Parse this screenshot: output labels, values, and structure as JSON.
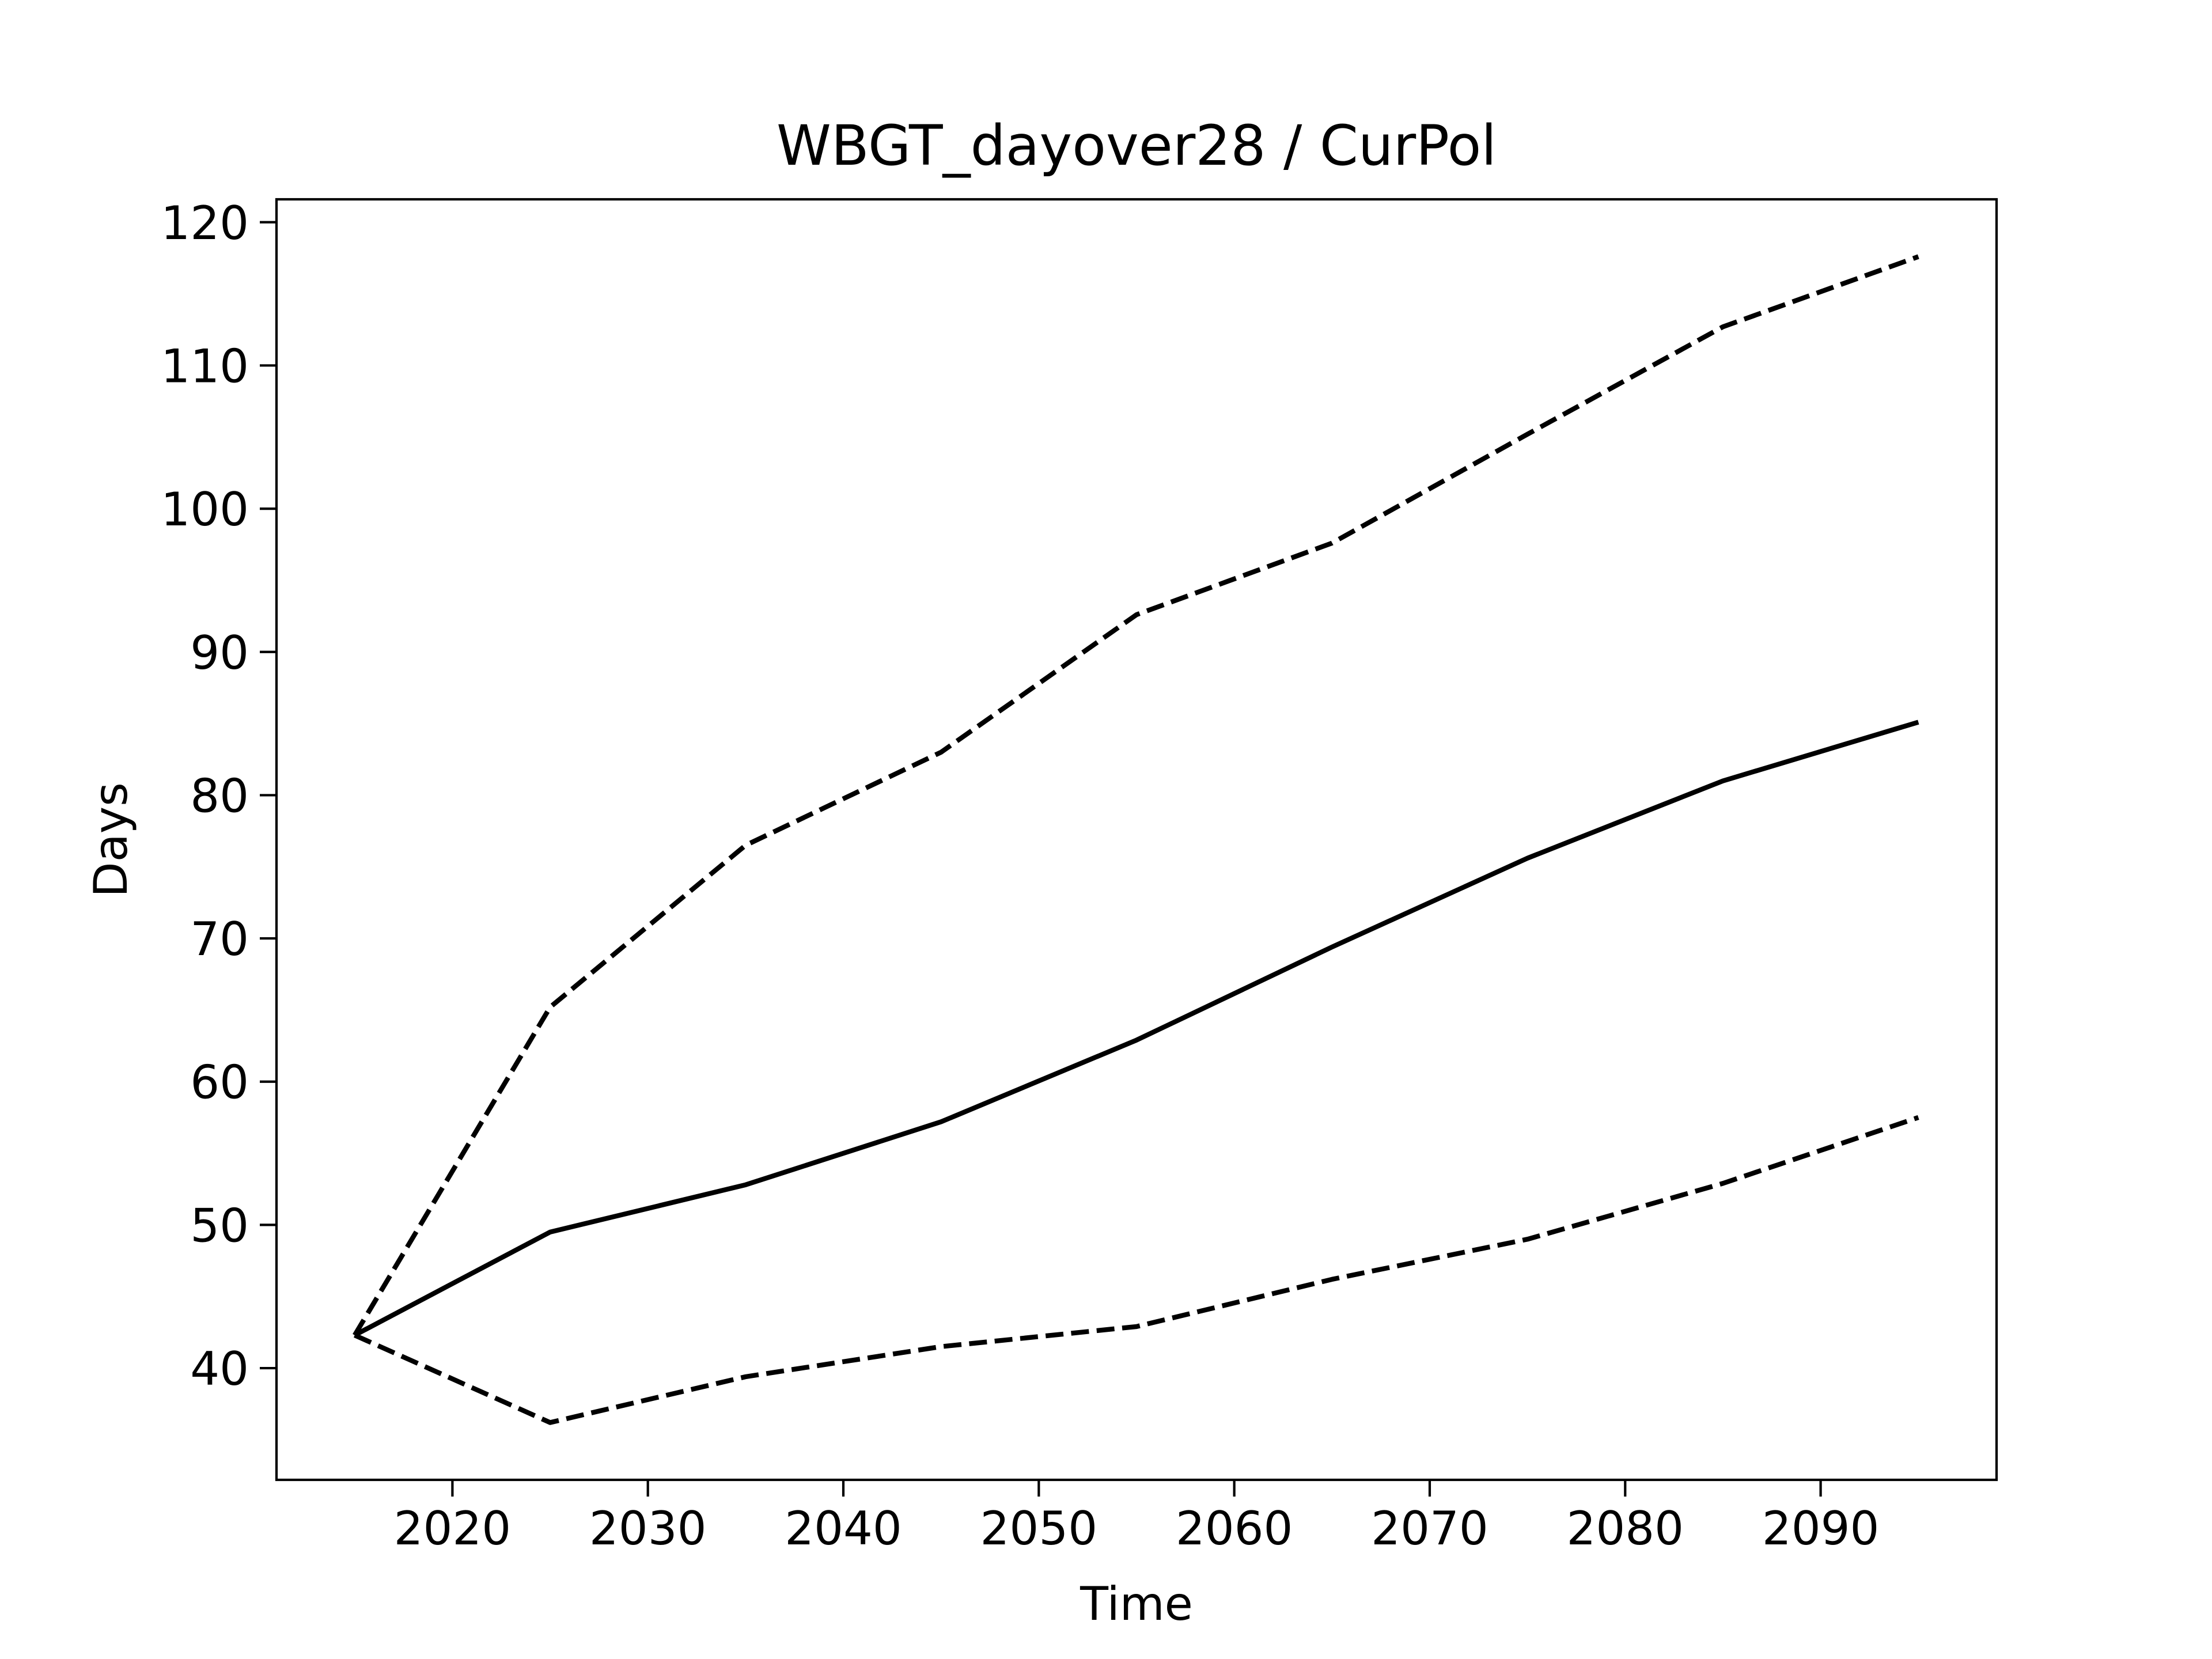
{
  "chart_data": {
    "type": "line",
    "title": "WBGT_dayover28 / CurPol",
    "xlabel": "Time",
    "ylabel": "Days",
    "xlim": [
      2011,
      2099
    ],
    "ylim": [
      32.2,
      121.6
    ],
    "xticks": [
      2020,
      2030,
      2040,
      2050,
      2060,
      2070,
      2080,
      2090
    ],
    "yticks": [
      40,
      50,
      60,
      70,
      80,
      90,
      100,
      110,
      120
    ],
    "xtick_labels": [
      "2020",
      "2030",
      "2040",
      "2050",
      "2060",
      "2070",
      "2080",
      "2090"
    ],
    "ytick_labels": [
      "40",
      "50",
      "60",
      "70",
      "80",
      "90",
      "100",
      "110",
      "120"
    ],
    "grid": false,
    "legend": "none",
    "x": [
      2015,
      2025,
      2035,
      2045,
      2055,
      2065,
      2075,
      2085,
      2095
    ],
    "series": [
      {
        "style": "dashed",
        "color": "#000000",
        "values": [
          42.3,
          65.2,
          76.5,
          83.0,
          92.6,
          97.6,
          105.2,
          112.7,
          117.6
        ]
      },
      {
        "style": "solid",
        "color": "#000000",
        "values": [
          42.3,
          49.5,
          52.8,
          57.2,
          62.9,
          69.4,
          75.6,
          81.0,
          85.1
        ]
      },
      {
        "style": "dashed",
        "color": "#000000",
        "values": [
          42.3,
          36.2,
          39.4,
          41.5,
          42.9,
          46.2,
          49.0,
          52.9,
          57.5
        ]
      }
    ]
  }
}
